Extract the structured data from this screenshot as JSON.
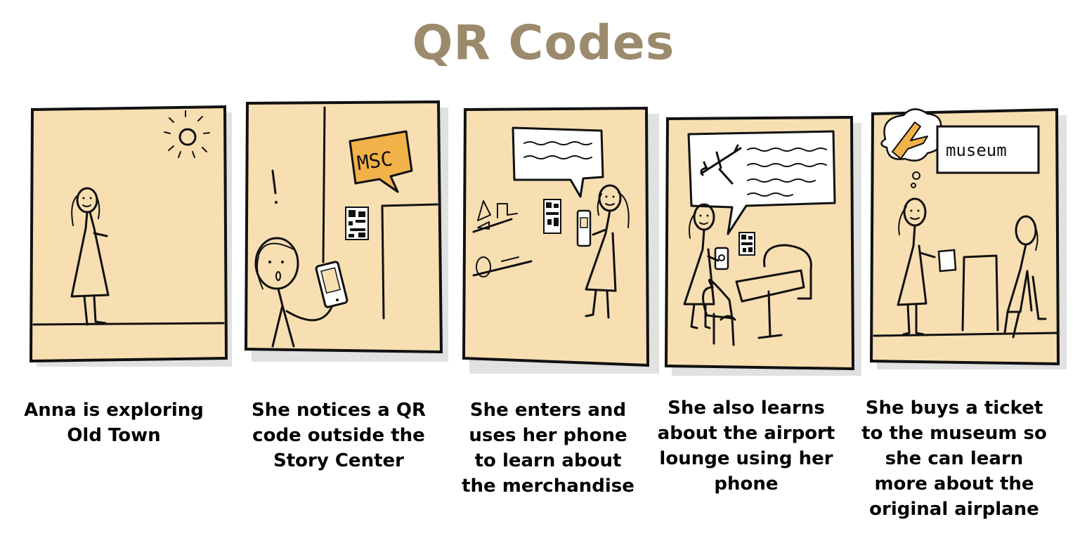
{
  "title": "QR Codes",
  "colors": {
    "panel_fill": "#f7dfb2",
    "title": "#9b8a6c",
    "ink": "#111111"
  },
  "panels": [
    {
      "caption": "Anna is exploring\nOld Town",
      "icons": [
        "sun-icon",
        "stick-figure-icon"
      ]
    },
    {
      "caption": "She notices a QR\ncode outside the\nStory Center",
      "sign_text": "MSC",
      "icons": [
        "qr-code-icon",
        "phone-icon"
      ]
    },
    {
      "caption": "She enters and\nuses her phone\nto learn about\nthe merchandise",
      "icons": [
        "speech-bubble-icon",
        "qr-code-icon",
        "phone-icon"
      ]
    },
    {
      "caption": "She also learns\nabout the airport\nlounge using her\nphone",
      "icons": [
        "airplane-icon",
        "qr-code-icon",
        "phone-icon"
      ]
    },
    {
      "caption": "She buys a ticket\nto the museum so\nshe can learn\nmore about the\noriginal airplane",
      "sign_text": "museum",
      "icons": [
        "airplane-icon",
        "ticket-icon"
      ]
    }
  ]
}
